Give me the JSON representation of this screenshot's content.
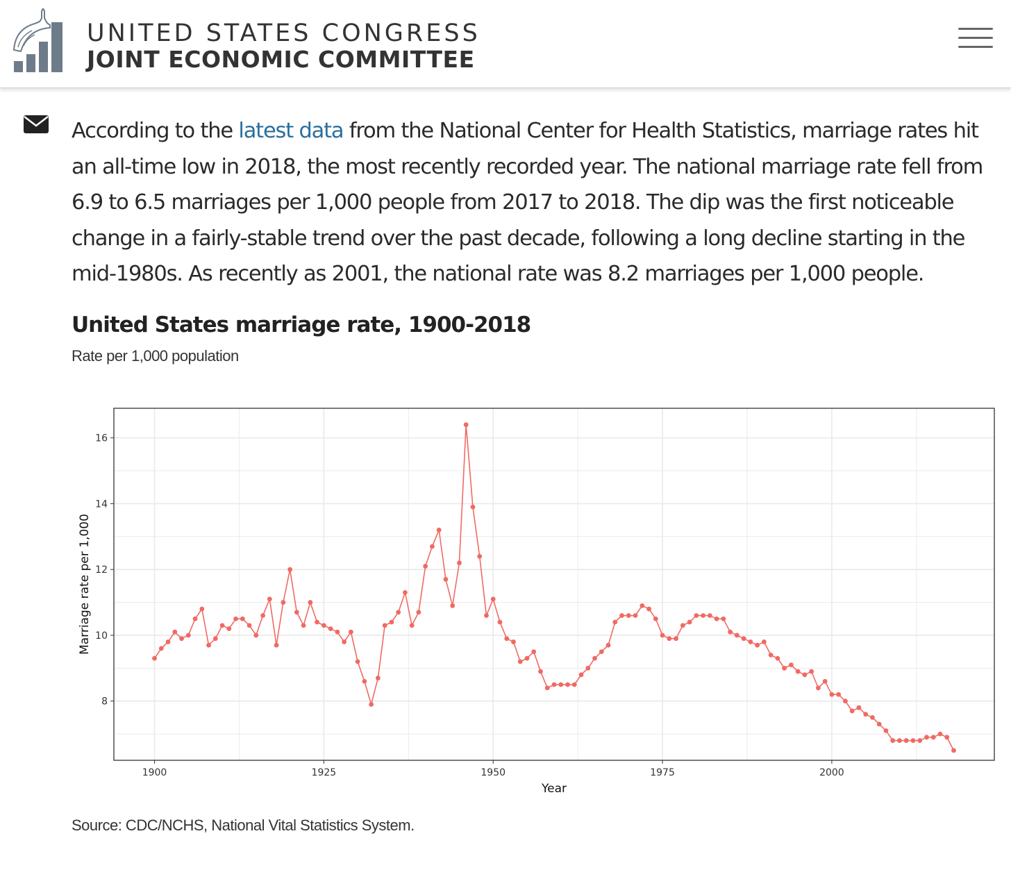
{
  "header": {
    "title_top": "UNITED STATES CONGRESS",
    "title_bottom": "JOINT ECONOMIC COMMITTEE",
    "logo_icon": "capitol-dome-bar-chart-logo",
    "menu_icon": "hamburger-menu-icon"
  },
  "article": {
    "share_icon": "envelope-icon",
    "text_before": "According to the ",
    "link_text": "latest data",
    "text_after": " from the National Center for Health Statistics, marriage rates hit an all-time low in 2018, the most recently recorded year. The national marriage rate fell from 6.9 to 6.5 marriages per 1,000 people from 2017 to 2018. The dip was the first noticeable change in a fairly-stable trend over the past decade, following a long decline starting in the mid-1980s. As recently as 2001, the national rate was 8.2 marriages per 1,000 people."
  },
  "figure": {
    "title": "United States marriage rate, 1900-2018",
    "subtitle": "Rate per 1,000 population",
    "source": "Source: CDC/NCHS, National Vital Statistics System."
  },
  "colors": {
    "line": "#f06a63",
    "link": "#2a6f9e",
    "grid": "#ebebeb"
  },
  "chart_data": {
    "type": "line",
    "xlabel": "Year",
    "ylabel": "Marriage rate per 1,000",
    "xlim": [
      1894,
      2024
    ],
    "ylim": [
      6.2,
      16.9
    ],
    "xticks": [
      1900,
      1925,
      1950,
      1975,
      2000
    ],
    "yticks": [
      8,
      10,
      12,
      14,
      16
    ],
    "grid": true,
    "series": [
      {
        "x": [
          1900,
          1901,
          1902,
          1903,
          1904,
          1905,
          1906,
          1907,
          1908,
          1909,
          1910,
          1911,
          1912,
          1913,
          1914,
          1915,
          1916,
          1917,
          1918,
          1919,
          1920,
          1921,
          1922,
          1923,
          1924,
          1925,
          1926,
          1927,
          1928,
          1929,
          1930,
          1931,
          1932,
          1933,
          1934,
          1935,
          1936,
          1937,
          1938,
          1939,
          1940,
          1941,
          1942,
          1943,
          1944,
          1945,
          1946,
          1947,
          1948,
          1949,
          1950,
          1951,
          1952,
          1953,
          1954,
          1955,
          1956,
          1957,
          1958,
          1959,
          1960,
          1961,
          1962,
          1963,
          1964,
          1965,
          1966,
          1967,
          1968,
          1969,
          1970,
          1971,
          1972,
          1973,
          1974,
          1975,
          1976,
          1977,
          1978,
          1979,
          1980,
          1981,
          1982,
          1983,
          1984,
          1985,
          1986,
          1987,
          1988,
          1989,
          1990,
          1991,
          1992,
          1993,
          1994,
          1995,
          1996,
          1997,
          1998,
          1999,
          2000,
          2001,
          2002,
          2003,
          2004,
          2005,
          2006,
          2007,
          2008,
          2009,
          2010,
          2011,
          2012,
          2013,
          2014,
          2015,
          2016,
          2017,
          2018
        ],
        "values": [
          9.3,
          9.6,
          9.8,
          10.1,
          9.9,
          10.0,
          10.5,
          10.8,
          9.7,
          9.9,
          10.3,
          10.2,
          10.5,
          10.5,
          10.3,
          10.0,
          10.6,
          11.1,
          9.7,
          11.0,
          12.0,
          10.7,
          10.3,
          11.0,
          10.4,
          10.3,
          10.2,
          10.1,
          9.8,
          10.1,
          9.2,
          8.6,
          7.9,
          8.7,
          10.3,
          10.4,
          10.7,
          11.3,
          10.3,
          10.7,
          12.1,
          12.7,
          13.2,
          11.7,
          10.9,
          12.2,
          16.4,
          13.9,
          12.4,
          10.6,
          11.1,
          10.4,
          9.9,
          9.8,
          9.2,
          9.3,
          9.5,
          8.9,
          8.4,
          8.5,
          8.5,
          8.5,
          8.5,
          8.8,
          9.0,
          9.3,
          9.5,
          9.7,
          10.4,
          10.6,
          10.6,
          10.6,
          10.9,
          10.8,
          10.5,
          10.0,
          9.9,
          9.9,
          10.3,
          10.4,
          10.6,
          10.6,
          10.6,
          10.5,
          10.5,
          10.1,
          10.0,
          9.9,
          9.8,
          9.7,
          9.8,
          9.4,
          9.3,
          9.0,
          9.1,
          8.9,
          8.8,
          8.9,
          8.4,
          8.6,
          8.2,
          8.2,
          8.0,
          7.7,
          7.8,
          7.6,
          7.5,
          7.3,
          7.1,
          6.8,
          6.8,
          6.8,
          6.8,
          6.8,
          6.9,
          6.9,
          7.0,
          6.9,
          6.5
        ]
      }
    ]
  }
}
